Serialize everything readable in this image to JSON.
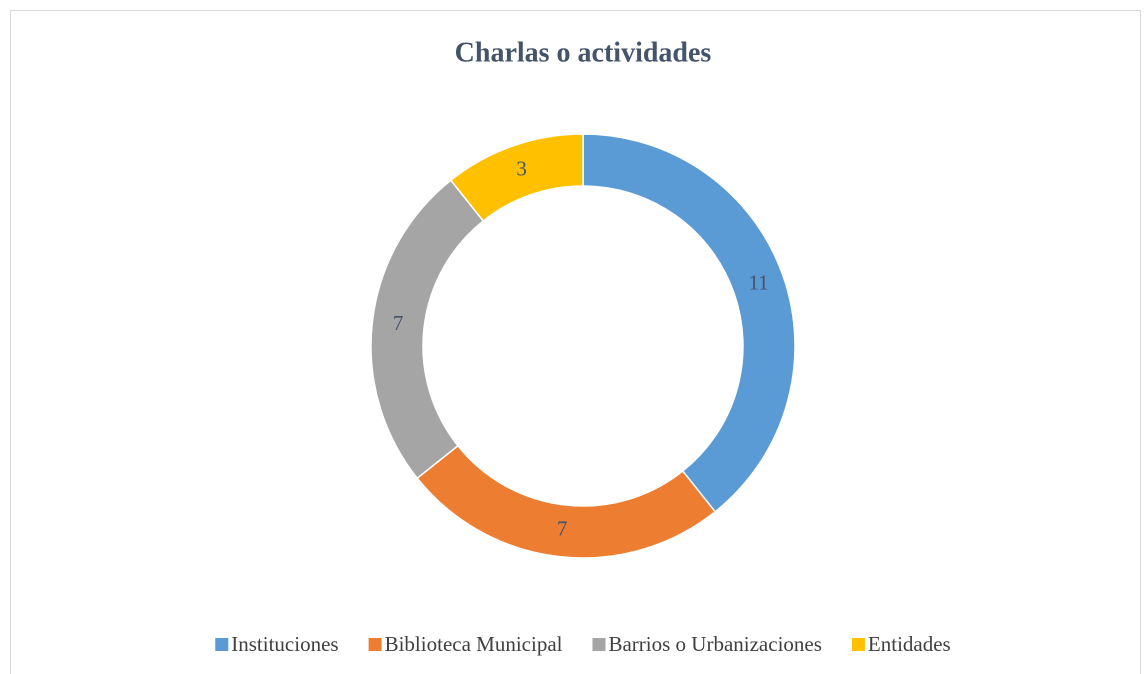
{
  "chart_data": {
    "type": "donut",
    "title": "Charlas o actividades",
    "categories": [
      "Instituciones",
      "Biblioteca Municipal",
      "Barrios o Urbanizaciones",
      "Entidades"
    ],
    "values": [
      11,
      7,
      7,
      3
    ],
    "colors": [
      "#5b9bd5",
      "#ed7d31",
      "#a5a5a5",
      "#ffc000"
    ],
    "legend": "bottom"
  }
}
